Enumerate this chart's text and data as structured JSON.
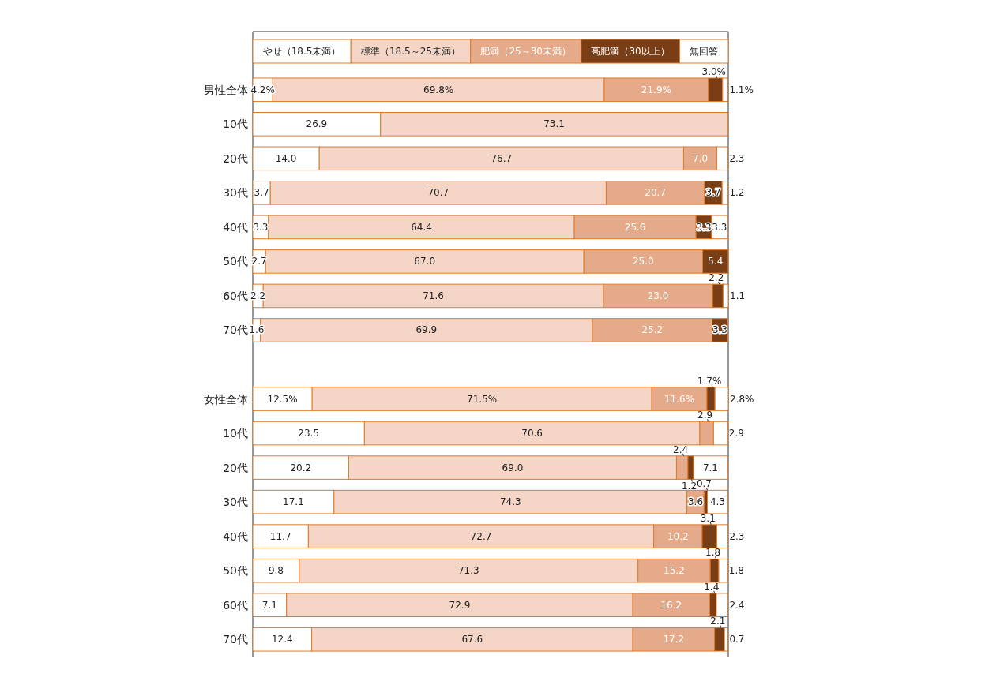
{
  "chart_data": {
    "type": "bar",
    "orientation": "horizontal",
    "stacked": true,
    "legend": "top",
    "categories": [
      "男性全体",
      "10代",
      "20代",
      "30代",
      "40代",
      "50代",
      "60代",
      "70代",
      null,
      "女性全体",
      "10代",
      "20代",
      "30代",
      "40代",
      "50代",
      "60代",
      "70代"
    ],
    "series": [
      {
        "name": "やせ（18.5未満）",
        "color": "#ffffff",
        "values": [
          4.2,
          26.9,
          14.0,
          3.7,
          3.3,
          2.7,
          2.2,
          1.6,
          null,
          12.5,
          23.5,
          20.2,
          17.1,
          11.7,
          9.8,
          7.1,
          12.4
        ],
        "value_labels": [
          "4.2%",
          "26.9",
          "14.0",
          "3.7",
          "3.3",
          "2.7",
          "2.2",
          "1.6",
          null,
          "12.5%",
          "23.5",
          "20.2",
          "17.1",
          "11.7",
          "9.8",
          "7.1",
          "12.4"
        ]
      },
      {
        "name": "標準（18.5～25未満）",
        "color": "#f4d5c6",
        "values": [
          69.8,
          73.1,
          76.7,
          70.7,
          64.4,
          67.0,
          71.6,
          69.9,
          null,
          71.5,
          70.6,
          69.0,
          74.3,
          72.7,
          71.3,
          72.9,
          67.6
        ],
        "value_labels": [
          "69.8%",
          "73.1",
          "76.7",
          "70.7",
          "64.4",
          "67.0",
          "71.6",
          "69.9",
          null,
          "71.5%",
          "70.6",
          "69.0",
          "74.3",
          "72.7",
          "71.3",
          "72.9",
          "67.6"
        ]
      },
      {
        "name": "肥満（25～30未満）",
        "color": "#e5aa8a",
        "values": [
          21.9,
          0,
          7.0,
          20.7,
          25.6,
          25.0,
          23.0,
          25.2,
          null,
          11.6,
          2.9,
          2.4,
          3.6,
          10.2,
          15.2,
          16.2,
          17.2
        ],
        "value_labels": [
          "21.9%",
          null,
          "7.0",
          "20.7",
          "25.6",
          "25.0",
          "23.0",
          "25.2",
          null,
          "11.6%",
          "2.9",
          "2.4",
          "3.6",
          "10.2",
          "15.2",
          "16.2",
          "17.2"
        ]
      },
      {
        "name": "高肥満（30以上）",
        "color": "#7a3e17",
        "values": [
          3.0,
          0,
          0,
          3.7,
          3.3,
          5.4,
          2.2,
          3.3,
          null,
          1.7,
          0,
          1.2,
          0.7,
          3.1,
          1.8,
          1.4,
          2.1
        ],
        "value_labels": [
          "3.0%",
          null,
          null,
          "3.7",
          "3.3",
          "5.4",
          "2.2",
          "3.3",
          null,
          "1.7%",
          null,
          "1.2",
          "0.7",
          "3.1",
          "1.8",
          "1.4",
          "2.1"
        ]
      },
      {
        "name": "無回答",
        "color": "#ffffff",
        "values": [
          1.1,
          0,
          2.3,
          1.2,
          3.3,
          0,
          1.1,
          0,
          null,
          2.8,
          2.9,
          7.1,
          4.3,
          2.3,
          1.8,
          2.4,
          0.7
        ],
        "value_labels": [
          "1.1%",
          null,
          "2.3",
          "1.2",
          "3.3",
          null,
          "1.1",
          null,
          null,
          "2.8%",
          "2.9",
          "7.1",
          "4.3",
          "2.3",
          "1.8",
          "2.4",
          "0.7"
        ]
      }
    ]
  }
}
